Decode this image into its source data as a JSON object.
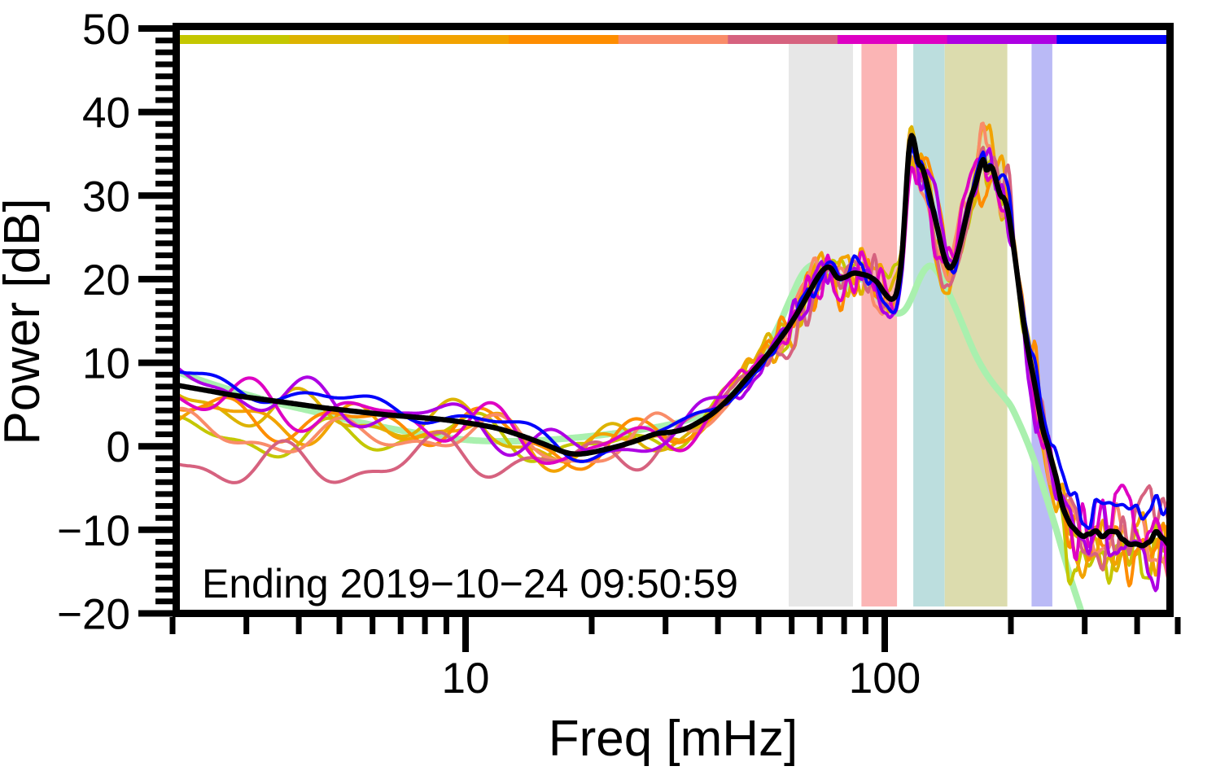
{
  "chart_data": {
    "type": "line",
    "title": "",
    "xlabel": "Freq [mHz]",
    "ylabel": "Power [dB]",
    "annotation": "Ending 2019−10−24 09:50:59",
    "x_scale": "log",
    "xlim": [
      2.05,
      478
    ],
    "ylim": [
      -20,
      50
    ],
    "grid": false,
    "legend": "none",
    "x_major_ticks": [
      10,
      100
    ],
    "x_minor_ticks": [
      2,
      3,
      4,
      5,
      6,
      7,
      8,
      9,
      20,
      30,
      40,
      50,
      60,
      70,
      80,
      90,
      200,
      300,
      400,
      500
    ],
    "y_major_ticks": [
      50,
      40,
      30,
      20,
      10,
      0,
      -10,
      -20
    ],
    "y_minor_intervals_per_major": 7,
    "top_colorbar_colors": [
      "#c4c700",
      "#ddb300",
      "#f2a300",
      "#fe8d00",
      "#f98c69",
      "#d6627f",
      "#de00c3",
      "#ad00e3",
      "#0404fb"
    ],
    "shaded_bands": [
      {
        "name": "band-gray",
        "color": "#e7e7e7",
        "f0": 59,
        "f1": 84
      },
      {
        "name": "band-pink",
        "color": "#fbb5b5",
        "f0": 88,
        "f1": 107
      },
      {
        "name": "band-teal",
        "color": "#bcdede",
        "f0": 117,
        "f1": 139
      },
      {
        "name": "band-olive",
        "color": "#dcdcae",
        "f0": 139,
        "f1": 196
      },
      {
        "name": "band-periwinkle",
        "color": "#babaf6",
        "f0": 224,
        "f1": 251
      }
    ],
    "mean_curve": {
      "name": "mean-spectrum",
      "color": "#000000",
      "points": [
        [
          2.05,
          7.3
        ],
        [
          2.4,
          6.7
        ],
        [
          2.8,
          6.1
        ],
        [
          3.3,
          5.6
        ],
        [
          3.9,
          5.1
        ],
        [
          4.6,
          4.6
        ],
        [
          5.4,
          4.2
        ],
        [
          6.4,
          3.8
        ],
        [
          7.5,
          3.5
        ],
        [
          8.8,
          3.2
        ],
        [
          10.4,
          2.7
        ],
        [
          12,
          2.1
        ],
        [
          13.7,
          1.2
        ],
        [
          15.5,
          0.2
        ],
        [
          17.5,
          -0.8
        ],
        [
          19,
          -0.9
        ],
        [
          21,
          -0.5
        ],
        [
          23.5,
          0.1
        ],
        [
          26,
          0.8
        ],
        [
          28.5,
          1.5
        ],
        [
          31,
          1.7
        ],
        [
          33.5,
          2.1
        ],
        [
          36,
          2.9
        ],
        [
          39,
          4.0
        ],
        [
          43,
          6.0
        ],
        [
          47,
          8.2
        ],
        [
          51,
          10.2
        ],
        [
          55,
          12.2
        ],
        [
          59,
          14.3
        ],
        [
          63,
          16.6
        ],
        [
          67,
          19.0
        ],
        [
          71,
          21.0
        ],
        [
          74,
          21.4
        ],
        [
          77,
          20.2
        ],
        [
          80,
          20.2
        ],
        [
          84,
          20.7
        ],
        [
          88,
          20.6
        ],
        [
          92,
          20.3
        ],
        [
          96,
          19.6
        ],
        [
          100,
          18.3
        ],
        [
          104,
          17.6
        ],
        [
          107,
          18.6
        ],
        [
          110,
          23.0
        ],
        [
          112,
          29.0
        ],
        [
          114,
          35.0
        ],
        [
          116,
          37.2
        ],
        [
          118,
          36.0
        ],
        [
          120,
          34.0
        ],
        [
          123,
          33.3
        ],
        [
          126,
          31.5
        ],
        [
          130,
          28.6
        ],
        [
          134,
          25.8
        ],
        [
          138,
          23.0
        ],
        [
          142,
          21.4
        ],
        [
          146,
          21.8
        ],
        [
          150,
          23.5
        ],
        [
          155,
          26.5
        ],
        [
          160,
          29.5
        ],
        [
          165,
          31.5
        ],
        [
          169,
          33.5
        ],
        [
          172,
          34.3
        ],
        [
          175,
          33.0
        ],
        [
          178,
          33.5
        ],
        [
          181,
          33.2
        ],
        [
          185,
          31.5
        ],
        [
          189,
          30.0
        ],
        [
          193,
          29.6
        ],
        [
          197,
          28.0
        ],
        [
          202,
          24.5
        ],
        [
          207,
          20.5
        ],
        [
          212,
          16.5
        ],
        [
          218,
          12.5
        ],
        [
          225,
          8.8
        ],
        [
          232,
          5.2
        ],
        [
          240,
          1.8
        ],
        [
          248,
          -1.2
        ],
        [
          256,
          -3.8
        ],
        [
          265,
          -6.3
        ],
        [
          275,
          -8.4
        ],
        [
          285,
          -9.7
        ],
        [
          295,
          -10.4
        ],
        [
          310,
          -10.8
        ],
        [
          330,
          -11.0
        ],
        [
          360,
          -10.7
        ],
        [
          400,
          -11.1
        ],
        [
          440,
          -10.9
        ],
        [
          478,
          -11.0
        ]
      ]
    },
    "reference_curve": {
      "name": "smooth-reference-spectrum",
      "color": "#a9f0ae",
      "points": [
        [
          2.05,
          8.9
        ],
        [
          2.5,
          7.4
        ],
        [
          3,
          6.2
        ],
        [
          3.6,
          5.1
        ],
        [
          4.3,
          4.2
        ],
        [
          5.2,
          3.2
        ],
        [
          6.2,
          2.4
        ],
        [
          7.4,
          1.7
        ],
        [
          8.8,
          1.1
        ],
        [
          10.5,
          0.7
        ],
        [
          12.5,
          0.6
        ],
        [
          15,
          0.7
        ],
        [
          18,
          1.0
        ],
        [
          21.5,
          1.4
        ],
        [
          25.5,
          1.9
        ],
        [
          30,
          2.5
        ],
        [
          35,
          3.4
        ],
        [
          40,
          4.9
        ],
        [
          44,
          6.5
        ],
        [
          48,
          8.8
        ],
        [
          52,
          11.5
        ],
        [
          56,
          14.6
        ],
        [
          60,
          18.0
        ],
        [
          64,
          20.8
        ],
        [
          68,
          21.8
        ],
        [
          72,
          21.5
        ],
        [
          76,
          20.3
        ],
        [
          80,
          19.0
        ],
        [
          84,
          19.6
        ],
        [
          88,
          20.0
        ],
        [
          92,
          19.2
        ],
        [
          96,
          17.9
        ],
        [
          100,
          16.9
        ],
        [
          104,
          16.2
        ],
        [
          108,
          15.9
        ],
        [
          112,
          16.4
        ],
        [
          116,
          17.8
        ],
        [
          120,
          19.6
        ],
        [
          124,
          21.0
        ],
        [
          128,
          21.6
        ],
        [
          132,
          21.2
        ],
        [
          137,
          20.0
        ],
        [
          142,
          18.4
        ],
        [
          148,
          16.4
        ],
        [
          155,
          14.0
        ],
        [
          163,
          11.4
        ],
        [
          172,
          9.2
        ],
        [
          182,
          7.4
        ],
        [
          192,
          6.0
        ],
        [
          200,
          4.8
        ],
        [
          210,
          2.6
        ],
        [
          220,
          0.2
        ],
        [
          232,
          -3.0
        ],
        [
          244,
          -6.4
        ],
        [
          256,
          -9.8
        ],
        [
          268,
          -13.2
        ],
        [
          280,
          -16.4
        ],
        [
          292,
          -19.2
        ],
        [
          298,
          -20.6
        ]
      ]
    },
    "segment_spectra": [
      {
        "name": "window-1",
        "color": "#c4c700",
        "seed": 11,
        "phase": 0.15,
        "phase2": 0.7,
        "cycles": 3.1,
        "slow_amp": 2.6,
        "fast_scale": 1.0,
        "start_db": 1.7,
        "dev_fade_f": 18,
        "tail_offset": -2.5
      },
      {
        "name": "window-2",
        "color": "#ddb300",
        "seed": 22,
        "phase": 0.52,
        "phase2": 0.1,
        "cycles": 2.8,
        "slow_amp": 3.0,
        "fast_scale": 1.0,
        "start_db": 6.1,
        "dev_fade_f": 25,
        "tail_offset": -2.0
      },
      {
        "name": "window-3",
        "color": "#f2a300",
        "seed": 33,
        "phase": 0.78,
        "phase2": 0.4,
        "cycles": 3.3,
        "slow_amp": 2.8,
        "fast_scale": 1.05,
        "start_db": 4.4,
        "dev_fade_f": 20,
        "tail_offset": -1.2
      },
      {
        "name": "window-4",
        "color": "#fe8d00",
        "seed": 44,
        "phase": 0.05,
        "phase2": 0.85,
        "cycles": 3.0,
        "slow_amp": 2.7,
        "fast_scale": 1.1,
        "start_db": 4.6,
        "dev_fade_f": 16,
        "tail_offset": -0.6
      },
      {
        "name": "window-5",
        "color": "#f98c69",
        "seed": 55,
        "phase": 0.33,
        "phase2": 0.55,
        "cycles": 2.7,
        "slow_amp": 2.5,
        "fast_scale": 0.9,
        "start_db": 2.2,
        "dev_fade_f": 22,
        "tail_offset": -0.8
      },
      {
        "name": "window-6",
        "color": "#d6627f",
        "seed": 66,
        "phase": 0.6,
        "phase2": 0.25,
        "cycles": 2.9,
        "slow_amp": 3.2,
        "fast_scale": 0.95,
        "start_db": -1.4,
        "dev_fade_f": 40,
        "tail_offset": 0.5
      },
      {
        "name": "window-7",
        "color": "#de00c3",
        "seed": 77,
        "phase": 0.63,
        "phase2": 0.62,
        "cycles": 3.4,
        "slow_amp": 3.0,
        "fast_scale": 1.05,
        "start_db": 6.7,
        "dev_fade_f": 20,
        "tail_offset": 0.8
      },
      {
        "name": "window-8",
        "color": "#ad00e3",
        "seed": 88,
        "phase": 0.25,
        "phase2": 0.92,
        "cycles": 3.2,
        "slow_amp": 2.9,
        "fast_scale": 1.0,
        "start_db": 8.0,
        "dev_fade_f": 17,
        "tail_offset": -1.4
      },
      {
        "name": "window-9",
        "color": "#0404fb",
        "seed": 9,
        "phase": 0.45,
        "phase2": 0.05,
        "cycles": 2.5,
        "slow_amp": 1.5,
        "fast_scale": 0.55,
        "start_db": 8.5,
        "dev_fade_f": 60,
        "tail_offset": 3.2
      }
    ]
  }
}
